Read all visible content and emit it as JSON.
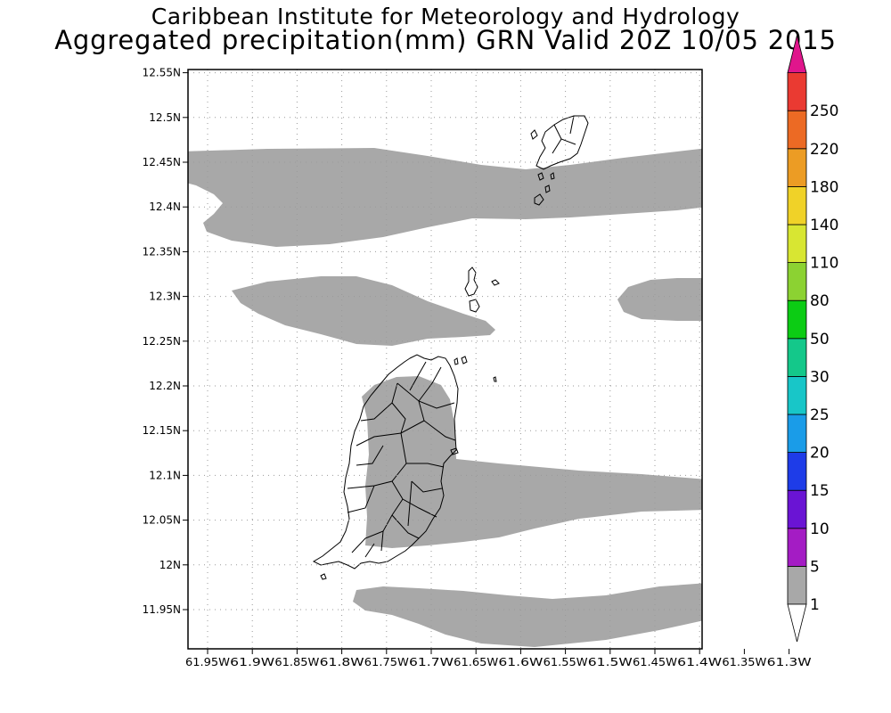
{
  "header": {
    "line1": "Caribbean Institute for Meteorology and Hydrology",
    "line2": "Aggregated precipitation(mm) GRN Valid 20Z 10/05 2015"
  },
  "map": {
    "lat_ticks": [
      {
        "value": 12.55,
        "label": "12.55N"
      },
      {
        "value": 12.5,
        "label": "12.5N"
      },
      {
        "value": 12.45,
        "label": "12.45N"
      },
      {
        "value": 12.4,
        "label": "12.4N"
      },
      {
        "value": 12.35,
        "label": "12.35N"
      },
      {
        "value": 12.3,
        "label": "12.3N"
      },
      {
        "value": 12.25,
        "label": "12.25N"
      },
      {
        "value": 12.2,
        "label": "12.2N"
      },
      {
        "value": 12.15,
        "label": "12.15N"
      },
      {
        "value": 12.1,
        "label": "12.1N"
      },
      {
        "value": 12.05,
        "label": "12.05N"
      },
      {
        "value": 12.0,
        "label": "12N"
      },
      {
        "value": 11.95,
        "label": "11.95N"
      }
    ],
    "lon_ticks": [
      {
        "value": -61.95,
        "label": "61.95W"
      },
      {
        "value": -61.9,
        "label": "61.9W"
      },
      {
        "value": -61.85,
        "label": "61.85W"
      },
      {
        "value": -61.8,
        "label": "61.8W"
      },
      {
        "value": -61.75,
        "label": "61.75W"
      },
      {
        "value": -61.7,
        "label": "61.7W"
      },
      {
        "value": -61.65,
        "label": "61.65W"
      },
      {
        "value": -61.6,
        "label": "61.6W"
      },
      {
        "value": -61.55,
        "label": "61.55W"
      },
      {
        "value": -61.5,
        "label": "61.5W"
      },
      {
        "value": -61.45,
        "label": "61.45W"
      },
      {
        "value": -61.4,
        "label": "61.4W"
      },
      {
        "value": -61.35,
        "label": "61.35W"
      },
      {
        "value": -61.3,
        "label": "61.3W"
      }
    ],
    "precip_band_value": "1-5 mm",
    "shade_color": "#a8a8a8"
  },
  "colorbar": {
    "under_color": "#ffffff",
    "over_color": "#e0168c",
    "bins": [
      {
        "label": "1",
        "color": "#a8a8a8"
      },
      {
        "label": "5",
        "color": "#a41cc4"
      },
      {
        "label": "10",
        "color": "#6a14d4"
      },
      {
        "label": "15",
        "color": "#1e3ce8"
      },
      {
        "label": "20",
        "color": "#1a9ce8"
      },
      {
        "label": "25",
        "color": "#18c6c8"
      },
      {
        "label": "30",
        "color": "#14c88a"
      },
      {
        "label": "50",
        "color": "#0ccc14"
      },
      {
        "label": "80",
        "color": "#8cd232"
      },
      {
        "label": "110",
        "color": "#d8e632"
      },
      {
        "label": "140",
        "color": "#f0d228"
      },
      {
        "label": "180",
        "color": "#ec9c24"
      },
      {
        "label": "220",
        "color": "#ec6a24"
      },
      {
        "label": "250",
        "color": "#ea3a32"
      }
    ]
  }
}
